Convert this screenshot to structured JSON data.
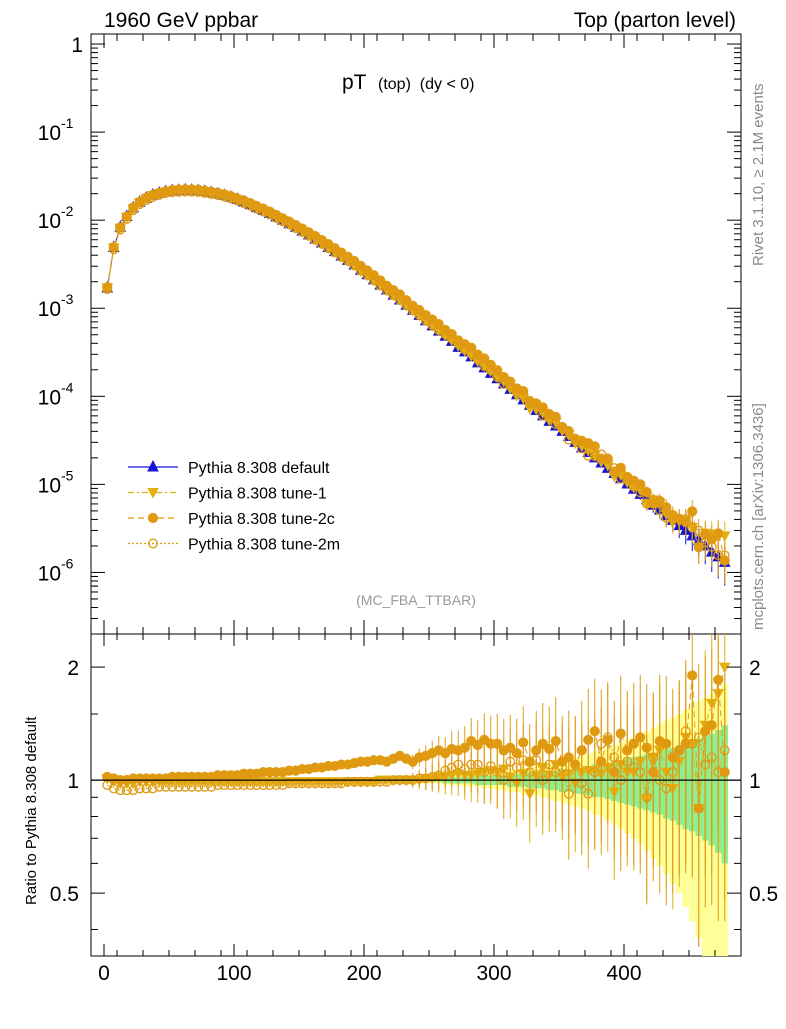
{
  "header": {
    "left": "1960 GeV ppbar",
    "right": "Top (parton level)"
  },
  "title_main": "pT",
  "title_sub": "(top)  (dy < 0)",
  "analysis_label": "(MC_FBA_TTBAR)",
  "side_label_top": "Rivet 3.1.10, ≥ 2.1M events",
  "side_label_bottom": "mcplots.cern.ch [arXiv:1306.3436]",
  "ratio_ylabel": "Ratio to Pythia 8.308 default",
  "colors": {
    "default": "#1515d4",
    "tune1": "#e3b010",
    "tune2c": "#e09a12",
    "tune2m": "#e09a12",
    "band_inner": "#90ee90",
    "band_outer": "#ffff99"
  },
  "chart_data": [
    {
      "type": "scatter",
      "panel": "main",
      "yscale": "log",
      "xlim": [
        -10,
        490
      ],
      "ylim": [
        2e-07,
        1.3
      ],
      "ytick_labels": [
        "1",
        "10^-1",
        "10^-2",
        "10^-3",
        "10^-4",
        "10^-5",
        "10^-6"
      ],
      "legend_position": "bottom-left",
      "legend": [
        "Pythia 8.308 default",
        "Pythia 8.308 tune-1",
        "Pythia 8.308 tune-2c",
        "Pythia 8.308 tune-2m"
      ],
      "x": [
        2.5,
        7.5,
        12.5,
        17.5,
        22.5,
        27.5,
        32.5,
        37.5,
        42.5,
        47.5,
        52.5,
        57.5,
        62.5,
        67.5,
        72.5,
        77.5,
        82.5,
        87.5,
        92.5,
        97.5,
        102.5,
        107.5,
        112.5,
        117.5,
        122.5,
        127.5,
        132.5,
        137.5,
        142.5,
        147.5,
        152.5,
        157.5,
        162.5,
        167.5,
        172.5,
        177.5,
        182.5,
        187.5,
        192.5,
        197.5,
        202.5,
        207.5,
        212.5,
        217.5,
        222.5,
        227.5,
        232.5,
        237.5,
        242.5,
        247.5,
        252.5,
        257.5,
        262.5,
        267.5,
        272.5,
        277.5,
        282.5,
        287.5,
        292.5,
        297.5,
        302.5,
        307.5,
        312.5,
        317.5,
        322.5,
        327.5,
        332.5,
        337.5,
        342.5,
        347.5,
        352.5,
        357.5,
        362.5,
        367.5,
        372.5,
        377.5,
        382.5,
        387.5,
        392.5,
        397.5,
        402.5,
        407.5,
        412.5,
        417.5,
        422.5,
        427.5,
        432.5,
        437.5,
        442.5,
        447.5,
        452.5,
        457.5,
        462.5,
        467.5,
        472.5,
        477.5
      ],
      "series": [
        {
          "name": "Pythia 8.308 default",
          "marker": "triangle-up",
          "values": [
            0.0017,
            0.0049,
            0.0083,
            0.011,
            0.0138,
            0.016,
            0.0178,
            0.0192,
            0.0202,
            0.0211,
            0.0216,
            0.0218,
            0.022,
            0.0219,
            0.0217,
            0.0212,
            0.0206,
            0.0199,
            0.0191,
            0.0182,
            0.0172,
            0.0161,
            0.015,
            0.0139,
            0.0129,
            0.0119,
            0.0109,
            0.01,
            0.0091,
            0.0083,
            0.0075,
            0.0068,
            0.0061,
            0.0055,
            0.0049,
            0.0044,
            0.0039,
            0.0035,
            0.0031,
            0.0027,
            0.0024,
            0.0021,
            0.00183,
            0.00161,
            0.00141,
            0.00124,
            0.00108,
            0.00095,
            0.00083,
            0.00072,
            0.00063,
            0.00055,
            0.00048,
            0.00042,
            0.00036,
            0.00032,
            0.00028,
            0.00024,
            0.00021,
            0.000182,
            0.000158,
            0.000138,
            0.00012,
            0.000104,
            9.1e-05,
            7.9e-05,
            6.9e-05,
            6e-05,
            5.2e-05,
            4.6e-05,
            4e-05,
            3.5e-05,
            3e-05,
            2.6e-05,
            2.3e-05,
            2e-05,
            1.75e-05,
            1.52e-05,
            1.33e-05,
            1.16e-05,
            1.01e-05,
            8.8e-06,
            7.7e-06,
            6.7e-06,
            5.8e-06,
            5.1e-06,
            4.4e-06,
            3.9e-06,
            3.4e-06,
            3e-06,
            2.6e-06,
            2.3e-06,
            2e-06,
            1.7e-06,
            1.5e-06,
            1.3e-06
          ],
          "ratio_band_inner": [
            0.01,
            0.01,
            0.01,
            0.01,
            0.01,
            0.01,
            0.01,
            0.01,
            0.01,
            0.01,
            0.01,
            0.01,
            0.01,
            0.01,
            0.01,
            0.01,
            0.01,
            0.01,
            0.01,
            0.01,
            0.01,
            0.01,
            0.01,
            0.01,
            0.01,
            0.01,
            0.01,
            0.01,
            0.01,
            0.01,
            0.01,
            0.01,
            0.01,
            0.01,
            0.01,
            0.01,
            0.01,
            0.01,
            0.01,
            0.01,
            0.01,
            0.01,
            0.01,
            0.01,
            0.01,
            0.01,
            0.01,
            0.01,
            0.01,
            0.01,
            0.01,
            0.01,
            0.02,
            0.02,
            0.02,
            0.02,
            0.02,
            0.03,
            0.03,
            0.03,
            0.03,
            0.03,
            0.04,
            0.04,
            0.04,
            0.05,
            0.05,
            0.05,
            0.06,
            0.06,
            0.07,
            0.07,
            0.08,
            0.08,
            0.09,
            0.1,
            0.1,
            0.11,
            0.12,
            0.13,
            0.14,
            0.15,
            0.16,
            0.17,
            0.18,
            0.19,
            0.21,
            0.22,
            0.24,
            0.26,
            0.27,
            0.29,
            0.31,
            0.33,
            0.36,
            0.4
          ],
          "ratio_band_outer": [
            0.01,
            0.01,
            0.01,
            0.01,
            0.01,
            0.01,
            0.01,
            0.01,
            0.01,
            0.01,
            0.01,
            0.01,
            0.01,
            0.01,
            0.01,
            0.01,
            0.01,
            0.01,
            0.01,
            0.01,
            0.01,
            0.01,
            0.01,
            0.01,
            0.01,
            0.01,
            0.01,
            0.01,
            0.01,
            0.01,
            0.01,
            0.01,
            0.01,
            0.01,
            0.01,
            0.01,
            0.01,
            0.01,
            0.01,
            0.01,
            0.01,
            0.01,
            0.01,
            0.01,
            0.01,
            0.01,
            0.01,
            0.01,
            0.02,
            0.02,
            0.02,
            0.02,
            0.03,
            0.03,
            0.03,
            0.04,
            0.04,
            0.04,
            0.05,
            0.05,
            0.06,
            0.06,
            0.07,
            0.07,
            0.08,
            0.09,
            0.09,
            0.1,
            0.11,
            0.12,
            0.13,
            0.14,
            0.15,
            0.16,
            0.17,
            0.19,
            0.2,
            0.22,
            0.24,
            0.26,
            0.28,
            0.3,
            0.32,
            0.35,
            0.38,
            0.41,
            0.44,
            0.47,
            0.5,
            0.54,
            0.58,
            0.62,
            0.66,
            0.7,
            0.74,
            0.8
          ]
        },
        {
          "name": "Pythia 8.308 tune-1",
          "marker": "triangle-down",
          "ratio": [
            1.01,
            0.99,
            0.98,
            0.98,
            0.98,
            0.99,
            0.99,
            0.99,
            0.99,
            0.99,
            0.99,
            0.99,
            0.99,
            0.99,
            0.99,
            0.99,
            0.99,
            0.99,
            0.99,
            0.99,
            0.99,
            0.99,
            0.99,
            0.99,
            0.99,
            0.99,
            0.99,
            0.99,
            0.99,
            0.99,
            0.99,
            0.99,
            0.99,
            0.99,
            0.99,
            0.99,
            0.99,
            0.99,
            0.99,
            0.99,
            0.99,
            0.99,
            1.0,
            1.0,
            1.0,
            1.0,
            1.0,
            1.0,
            1.0,
            1.01,
            1.01,
            1.02,
            1.02,
            1.03,
            1.04,
            1.03,
            1.03,
            1.04,
            1.05,
            1.06,
            1.05,
            1.07,
            1.02,
            0.98,
            1.04,
            0.92,
            1.03,
            1.08,
            1.03,
            1.1,
            1.02,
            1.04,
            0.98,
            1.05,
            1.06,
            1.06,
            1.04,
            1.08,
            0.93,
            1.1,
            1.05,
            1.05,
            1.12,
            0.89,
            1.15,
            1.2,
            1.05,
            0.95,
            1.12,
            1.3,
            1.25,
            0.84,
            1.4,
            1.6,
            1.7,
            2.0
          ]
        },
        {
          "name": "Pythia 8.308 tune-2c",
          "marker": "circle",
          "ratio": [
            1.02,
            1.01,
            1.0,
            1.0,
            1.01,
            1.01,
            1.01,
            1.01,
            1.01,
            1.01,
            1.02,
            1.02,
            1.02,
            1.02,
            1.02,
            1.02,
            1.02,
            1.03,
            1.03,
            1.03,
            1.03,
            1.04,
            1.04,
            1.04,
            1.05,
            1.05,
            1.05,
            1.05,
            1.06,
            1.06,
            1.07,
            1.07,
            1.08,
            1.08,
            1.09,
            1.09,
            1.1,
            1.1,
            1.11,
            1.12,
            1.12,
            1.13,
            1.13,
            1.12,
            1.14,
            1.16,
            1.14,
            1.12,
            1.15,
            1.16,
            1.18,
            1.2,
            1.18,
            1.21,
            1.2,
            1.22,
            1.27,
            1.24,
            1.28,
            1.25,
            1.25,
            1.2,
            1.22,
            1.18,
            1.26,
            1.12,
            1.2,
            1.25,
            1.21,
            1.27,
            1.12,
            1.15,
            1.1,
            1.2,
            1.28,
            1.35,
            1.12,
            1.28,
            1.05,
            1.33,
            1.2,
            1.25,
            1.3,
            1.22,
            1.05,
            1.27,
            1.25,
            1.15,
            1.2,
            1.25,
            1.9,
            0.84,
            1.35,
            1.4,
            1.85,
            1.05
          ]
        },
        {
          "name": "Pythia 8.308 tune-2m",
          "marker": "open-circle",
          "ratio": [
            0.97,
            0.95,
            0.94,
            0.94,
            0.94,
            0.95,
            0.95,
            0.95,
            0.96,
            0.96,
            0.96,
            0.96,
            0.96,
            0.96,
            0.96,
            0.96,
            0.96,
            0.97,
            0.97,
            0.97,
            0.97,
            0.97,
            0.97,
            0.97,
            0.97,
            0.97,
            0.97,
            0.97,
            0.98,
            0.98,
            0.98,
            0.98,
            0.98,
            0.98,
            0.98,
            0.98,
            0.98,
            0.99,
            0.99,
            0.99,
            0.99,
            0.99,
            0.99,
            0.99,
            1.0,
            1.0,
            1.0,
            1.0,
            1.01,
            1.01,
            1.02,
            1.03,
            1.06,
            1.08,
            1.1,
            1.07,
            1.1,
            1.1,
            1.05,
            1.09,
            1.05,
            1.0,
            1.12,
            1.08,
            1.13,
            1.05,
            1.13,
            1.0,
            1.1,
            1.05,
            1.08,
            0.92,
            1.1,
            0.98,
            0.92,
            1.05,
            1.25,
            1.3,
            1.15,
            1.0,
            1.12,
            1.08,
            1.05,
            0.9,
            1.15,
            1.0,
            0.95,
            1.05,
            1.2,
            1.35,
            1.25,
            1.3,
            1.1,
            1.15,
            1.05,
            1.2
          ]
        }
      ]
    },
    {
      "type": "scatter",
      "panel": "ratio",
      "ylabel": "Ratio to Pythia 8.308 default",
      "xlim": [
        -10,
        490
      ],
      "ylim": [
        0.34,
        2.45
      ],
      "yscale": "log",
      "xticks": [
        0,
        100,
        200,
        300,
        400
      ],
      "yticks": [
        0.5,
        1,
        2
      ]
    }
  ]
}
